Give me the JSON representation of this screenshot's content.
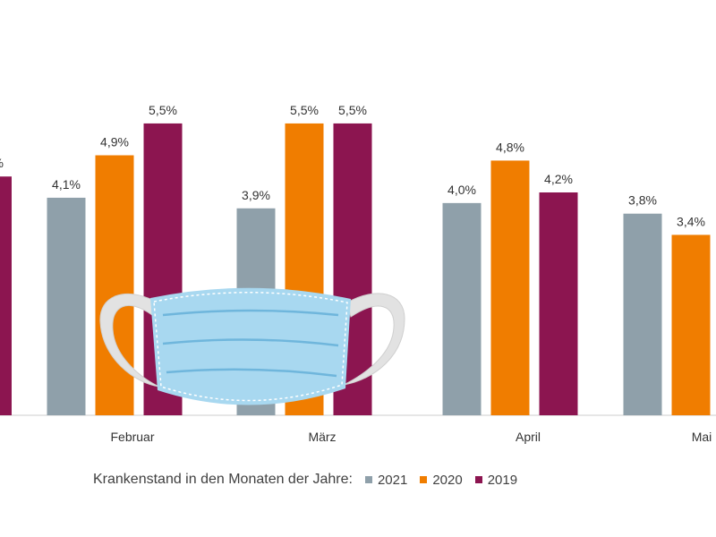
{
  "chart_data": {
    "type": "bar",
    "categories": [
      "",
      "Februar",
      "März",
      "April",
      "Mai"
    ],
    "series": [
      {
        "name": "2021",
        "values": [
          null,
          4.1,
          3.9,
          4.0,
          3.8
        ]
      },
      {
        "name": "2020",
        "values": [
          null,
          4.9,
          5.5,
          4.8,
          3.4
        ]
      },
      {
        "name": "2019",
        "values": [
          null,
          5.5,
          5.5,
          4.2,
          null
        ]
      }
    ],
    "data_labels": [
      [
        null,
        "4,1%",
        "3,9%",
        "4,0%",
        "3,8%"
      ],
      [
        null,
        "4,9%",
        "5,5%",
        "4,8%",
        "3,4%"
      ],
      [
        "%",
        "5,5%",
        "5,5%",
        "4,2%",
        null
      ]
    ],
    "partial_bar_value": 4.5,
    "ylim": [
      0,
      6.0
    ],
    "grid": false,
    "legend_position": "bottom",
    "title": "",
    "xlabel": "",
    "ylabel": ""
  },
  "legend": {
    "title": "Krankenstand  in den Monaten der Jahre:"
  },
  "colors": {
    "2021": "#8fa0aa",
    "2020": "#f07d00",
    "2019": "#8c1550",
    "mask": "#a8d8f0",
    "mask_fold": "#6fb6dc",
    "strap": "#e0e0e0",
    "axis": "#cccccc"
  },
  "illustration": {
    "icon": "face-mask-icon"
  }
}
